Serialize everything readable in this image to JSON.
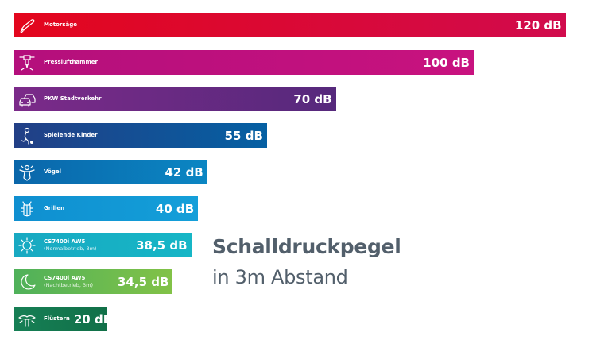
{
  "chart_data": {
    "type": "bar",
    "orientation": "horizontal",
    "title": "Schalldruckpegel",
    "subtitle": "in 3m Abstand",
    "unit": "dB",
    "grid": false,
    "categories": [
      "Motorsäge",
      "Presslufthammer",
      "PKW Stadtverkehr",
      "Spielende Kinder",
      "Vögel",
      "Grillen",
      "CS7400i AW5",
      "CS7400i AW5",
      "Flüstern"
    ],
    "category_notes": [
      "",
      "",
      "",
      "",
      "",
      "",
      "(Normalbetrieb, 3m)",
      "(Nachtbetrieb, 3m)",
      ""
    ],
    "values": [
      120,
      100,
      70,
      55,
      42,
      40,
      38.5,
      34.5,
      20
    ],
    "value_labels": [
      "120 dB",
      "100 dB",
      "70 dB",
      "55 dB",
      "42 dB",
      "40 dB",
      "38,5 dB",
      "34,5 dB",
      "20 dB"
    ],
    "icons": [
      "chainsaw-icon",
      "jackhammer-icon",
      "cars-icon",
      "child-playing-icon",
      "bird-icon",
      "cricket-icon",
      "sun-icon",
      "moon-icon",
      "whisper-icon"
    ],
    "colors": [
      [
        "#e3061d",
        "#d10b4d"
      ],
      [
        "#b40f7c",
        "#c8127f"
      ],
      [
        "#7b2a89",
        "#56297c"
      ],
      [
        "#223f86",
        "#0560a3"
      ],
      [
        "#0a66aa",
        "#0b86c3"
      ],
      [
        "#0f8fd0",
        "#149fd9"
      ],
      [
        "#18a9c2",
        "#16b6c6"
      ],
      [
        "#4fb15a",
        "#82c247"
      ],
      [
        "#167f55",
        "#117048"
      ]
    ]
  }
}
